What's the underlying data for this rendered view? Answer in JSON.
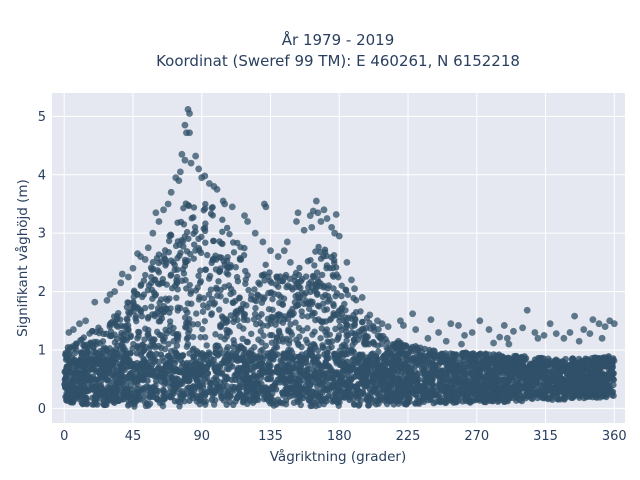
{
  "chart_data": {
    "type": "scatter",
    "title_line1": "År 1979 - 2019",
    "title_line2": "Koordinat (Sweref 99 TM): E 460261, N 6152218",
    "xlabel": "Vågriktning (grader)",
    "ylabel": "Signifikant våghöjd (m)",
    "xlim": [
      -8,
      367
    ],
    "ylim": [
      -0.25,
      5.4
    ],
    "xticks": [
      0,
      45,
      90,
      135,
      180,
      225,
      270,
      315,
      360
    ],
    "xtick_labels": [
      "0",
      "45",
      "90",
      "135",
      "180",
      "225",
      "270",
      "315",
      "360"
    ],
    "yticks": [
      0,
      1,
      2,
      3,
      4,
      5
    ],
    "ytick_labels": [
      "0",
      "1",
      "2",
      "3",
      "4",
      "5"
    ],
    "grid": true,
    "legend": "none",
    "marker_color": "#2f5068",
    "plot_bg": "#e5e8f0",
    "density_envelope": {
      "x": [
        0,
        10,
        20,
        30,
        40,
        45,
        50,
        60,
        70,
        75,
        80,
        85,
        90,
        100,
        110,
        120,
        135,
        140,
        150,
        155,
        160,
        165,
        170,
        175,
        180,
        190,
        200,
        210,
        225,
        240,
        270,
        300,
        330,
        360
      ],
      "y_max": [
        1.0,
        1.2,
        1.35,
        1.5,
        1.8,
        2.0,
        2.2,
        2.6,
        3.0,
        3.3,
        3.55,
        3.6,
        3.6,
        3.4,
        3.0,
        2.7,
        2.4,
        2.35,
        2.3,
        2.45,
        2.6,
        2.75,
        2.8,
        2.75,
        2.5,
        1.9,
        1.5,
        1.25,
        1.1,
        1.0,
        0.95,
        0.9,
        0.85,
        0.9
      ],
      "y_min": [
        0.12,
        0.08,
        0.05,
        0.04,
        0.03,
        0.03,
        0.03,
        0.03,
        0.03,
        0.03,
        0.03,
        0.04,
        0.05,
        0.05,
        0.05,
        0.05,
        0.05,
        0.04,
        0.04,
        0.04,
        0.04,
        0.04,
        0.04,
        0.04,
        0.04,
        0.04,
        0.05,
        0.06,
        0.07,
        0.08,
        0.1,
        0.12,
        0.15,
        0.2
      ]
    },
    "outliers": [
      [
        81,
        5.12
      ],
      [
        82,
        5.05
      ],
      [
        79,
        4.85
      ],
      [
        80,
        4.72
      ],
      [
        82,
        4.72
      ],
      [
        77,
        4.35
      ],
      [
        79,
        4.25
      ],
      [
        83,
        4.2
      ],
      [
        76,
        4.05
      ],
      [
        88,
        4.1
      ],
      [
        75,
        3.9
      ],
      [
        90,
        3.95
      ],
      [
        95,
        3.85
      ],
      [
        98,
        3.8
      ],
      [
        100,
        3.75
      ],
      [
        104,
        3.55
      ],
      [
        110,
        3.45
      ],
      [
        118,
        3.3
      ],
      [
        120,
        3.2
      ],
      [
        105,
        3.5
      ],
      [
        60,
        3.35
      ],
      [
        62,
        3.2
      ],
      [
        65,
        3.4
      ],
      [
        58,
        3.0
      ],
      [
        55,
        2.75
      ],
      [
        50,
        2.6
      ],
      [
        45,
        2.4
      ],
      [
        42,
        2.25
      ],
      [
        37,
        2.15
      ],
      [
        33,
        2.0
      ],
      [
        30,
        1.95
      ],
      [
        28,
        1.85
      ],
      [
        38,
        2.3
      ],
      [
        48,
        2.65
      ],
      [
        53,
        2.55
      ],
      [
        20,
        1.82
      ],
      [
        14,
        1.5
      ],
      [
        10,
        1.45
      ],
      [
        6,
        1.35
      ],
      [
        3,
        1.3
      ],
      [
        125,
        3.0
      ],
      [
        130,
        2.85
      ],
      [
        135,
        2.7
      ],
      [
        140,
        2.6
      ],
      [
        148,
        2.5
      ],
      [
        152,
        3.2
      ],
      [
        153,
        3.35
      ],
      [
        161,
        3.3
      ],
      [
        163,
        3.38
      ],
      [
        165,
        3.55
      ],
      [
        166,
        3.35
      ],
      [
        168,
        3.2
      ],
      [
        170,
        3.4
      ],
      [
        157,
        3.05
      ],
      [
        162,
        3.1
      ],
      [
        172,
        3.25
      ],
      [
        175,
        3.1
      ],
      [
        177,
        3.0
      ],
      [
        178,
        3.32
      ],
      [
        180,
        2.95
      ],
      [
        131,
        3.5
      ],
      [
        132,
        3.45
      ],
      [
        146,
        2.85
      ],
      [
        144,
        2.7
      ],
      [
        185,
        2.5
      ],
      [
        188,
        2.2
      ],
      [
        190,
        2.05
      ],
      [
        195,
        1.9
      ],
      [
        200,
        1.6
      ],
      [
        205,
        1.5
      ],
      [
        208,
        1.45
      ],
      [
        212,
        1.4
      ],
      [
        220,
        1.5
      ],
      [
        222,
        1.42
      ],
      [
        230,
        1.35
      ],
      [
        238,
        1.2
      ],
      [
        245,
        1.3
      ],
      [
        250,
        1.15
      ],
      [
        253,
        1.45
      ],
      [
        258,
        1.42
      ],
      [
        262,
        1.25
      ],
      [
        267,
        1.3
      ],
      [
        272,
        1.5
      ],
      [
        278,
        1.35
      ],
      [
        281,
        1.12
      ],
      [
        285,
        1.22
      ],
      [
        288,
        1.42
      ],
      [
        290,
        1.2
      ],
      [
        294,
        1.32
      ],
      [
        300,
        1.38
      ],
      [
        303,
        1.68
      ],
      [
        310,
        1.2
      ],
      [
        314,
        1.25
      ],
      [
        318,
        1.45
      ],
      [
        322,
        1.28
      ],
      [
        327,
        1.2
      ],
      [
        331,
        1.3
      ],
      [
        334,
        1.58
      ],
      [
        340,
        1.35
      ],
      [
        346,
        1.52
      ],
      [
        350,
        1.45
      ],
      [
        354,
        1.4
      ],
      [
        357,
        1.5
      ],
      [
        360,
        1.45
      ],
      [
        212,
        1.0
      ],
      [
        240,
        1.52
      ],
      [
        260,
        1.1
      ],
      [
        291,
        1.1
      ],
      [
        308,
        1.3
      ],
      [
        352,
        1.2
      ],
      [
        337,
        1.15
      ],
      [
        344,
        1.28
      ],
      [
        228,
        1.62
      ],
      [
        86,
        4.32
      ],
      [
        92,
        3.98
      ],
      [
        70,
        3.7
      ],
      [
        73,
        3.95
      ],
      [
        68,
        3.5
      ]
    ]
  }
}
